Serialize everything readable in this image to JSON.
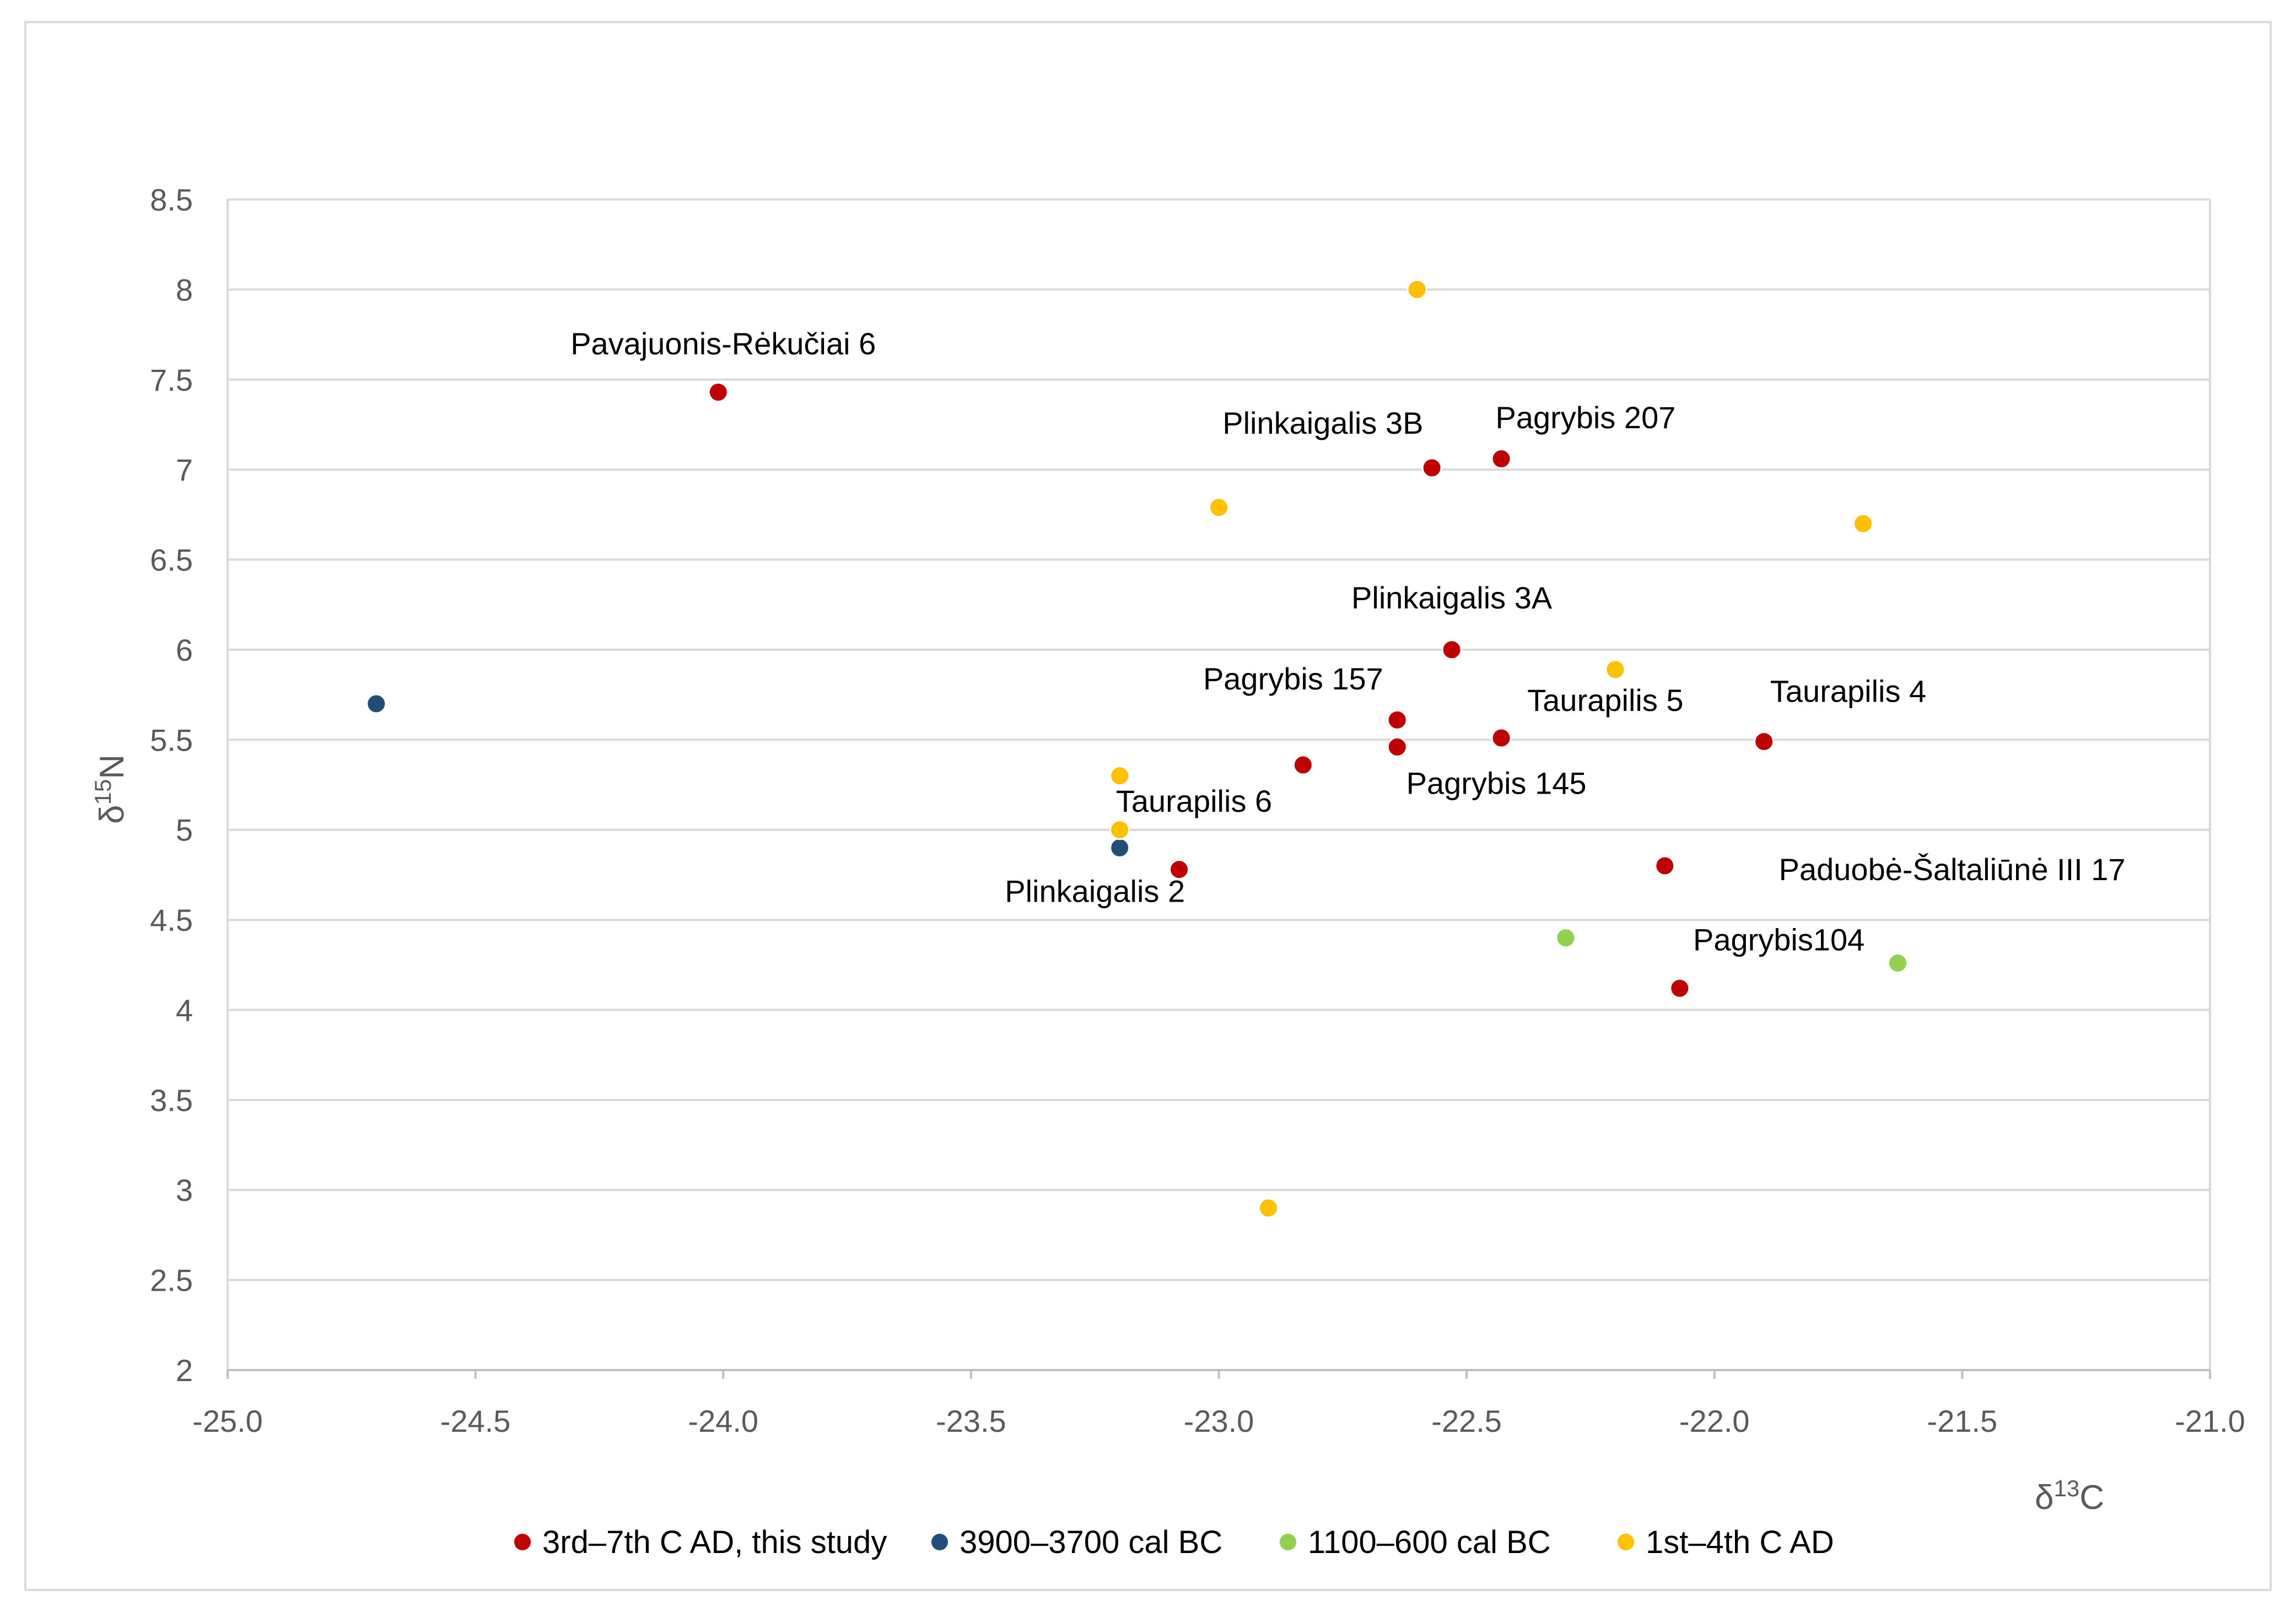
{
  "chart_data": {
    "type": "scatter",
    "title": "",
    "xlabel_base": "δ",
    "xlabel_sup": "13",
    "xlabel_suffix": "C",
    "ylabel_base": "δ",
    "ylabel_sup": "15",
    "ylabel_suffix": "N",
    "xlim": [
      -25.0,
      -21.0
    ],
    "ylim": [
      2,
      8.5
    ],
    "x_ticks": [
      -25.0,
      -24.5,
      -24.0,
      -23.5,
      -23.0,
      -22.5,
      -22.0,
      -21.5,
      -21.0
    ],
    "x_tick_labels": [
      "-25.0",
      "-24.5",
      "-24.0",
      "-23.5",
      "-23.0",
      "-22.5",
      "-22.0",
      "-21.5",
      "-21.0"
    ],
    "y_ticks": [
      2,
      2.5,
      3,
      3.5,
      4,
      4.5,
      5,
      5.5,
      6,
      6.5,
      7,
      7.5,
      8,
      8.5
    ],
    "y_tick_labels": [
      "2",
      "2.5",
      "3",
      "3.5",
      "4",
      "4.5",
      "5",
      "5.5",
      "6",
      "6.5",
      "7",
      "7.5",
      "8",
      "8.5"
    ],
    "grid": "horizontal",
    "legend_position": "bottom",
    "series": [
      {
        "name": "3rd–7th C AD, this study",
        "color": "#c00000",
        "points": [
          {
            "x": -24.01,
            "y": 7.43,
            "label": "Pavajuonis-Rėkučiai 6",
            "label_pos": "above"
          },
          {
            "x": -22.57,
            "y": 7.01,
            "label": "Plinkaigalis 3B",
            "label_pos": "above-left"
          },
          {
            "x": -22.43,
            "y": 7.06,
            "label": "Pagrybis 207",
            "label_pos": "above-right"
          },
          {
            "x": -22.53,
            "y": 6.0,
            "label": "Plinkaigalis 3A",
            "label_pos": "above"
          },
          {
            "x": -22.64,
            "y": 5.61,
            "label": "Pagrybis 157",
            "label_pos": "above-left"
          },
          {
            "x": -22.64,
            "y": 5.46,
            "label": "Pagrybis 145",
            "label_pos": "below-right"
          },
          {
            "x": -22.43,
            "y": 5.51,
            "label": "Taurapilis 5",
            "label_pos": "above-right"
          },
          {
            "x": -21.9,
            "y": 5.49,
            "label": "Taurapilis 4",
            "label_pos": "above-right"
          },
          {
            "x": -22.83,
            "y": 5.36,
            "label": "Taurapilis 6",
            "label_pos": "below-left"
          },
          {
            "x": -23.08,
            "y": 4.78,
            "label": "Plinkaigalis 2",
            "label_pos": "below-left"
          },
          {
            "x": -22.1,
            "y": 4.8,
            "label": "Paduobė-Šaltaliūnė III 17",
            "label_pos": "below-right"
          },
          {
            "x": -22.07,
            "y": 4.12,
            "label": "Pagrybis104",
            "label_pos": "above-right"
          }
        ]
      },
      {
        "name": "3900–3700 cal BC",
        "color": "#1f4e79",
        "points": [
          {
            "x": -24.7,
            "y": 5.7
          },
          {
            "x": -23.2,
            "y": 4.9
          }
        ]
      },
      {
        "name": "1100–600 cal BC",
        "color": "#92d050",
        "points": [
          {
            "x": -22.3,
            "y": 4.4
          },
          {
            "x": -21.63,
            "y": 4.26
          }
        ]
      },
      {
        "name": "1st–4th C AD",
        "color": "#ffc000",
        "points": [
          {
            "x": -22.6,
            "y": 8.0
          },
          {
            "x": -23.0,
            "y": 6.79
          },
          {
            "x": -21.7,
            "y": 6.7
          },
          {
            "x": -22.2,
            "y": 5.89
          },
          {
            "x": -23.2,
            "y": 5.3
          },
          {
            "x": -23.2,
            "y": 5.0
          },
          {
            "x": -22.9,
            "y": 2.9
          }
        ]
      }
    ]
  }
}
